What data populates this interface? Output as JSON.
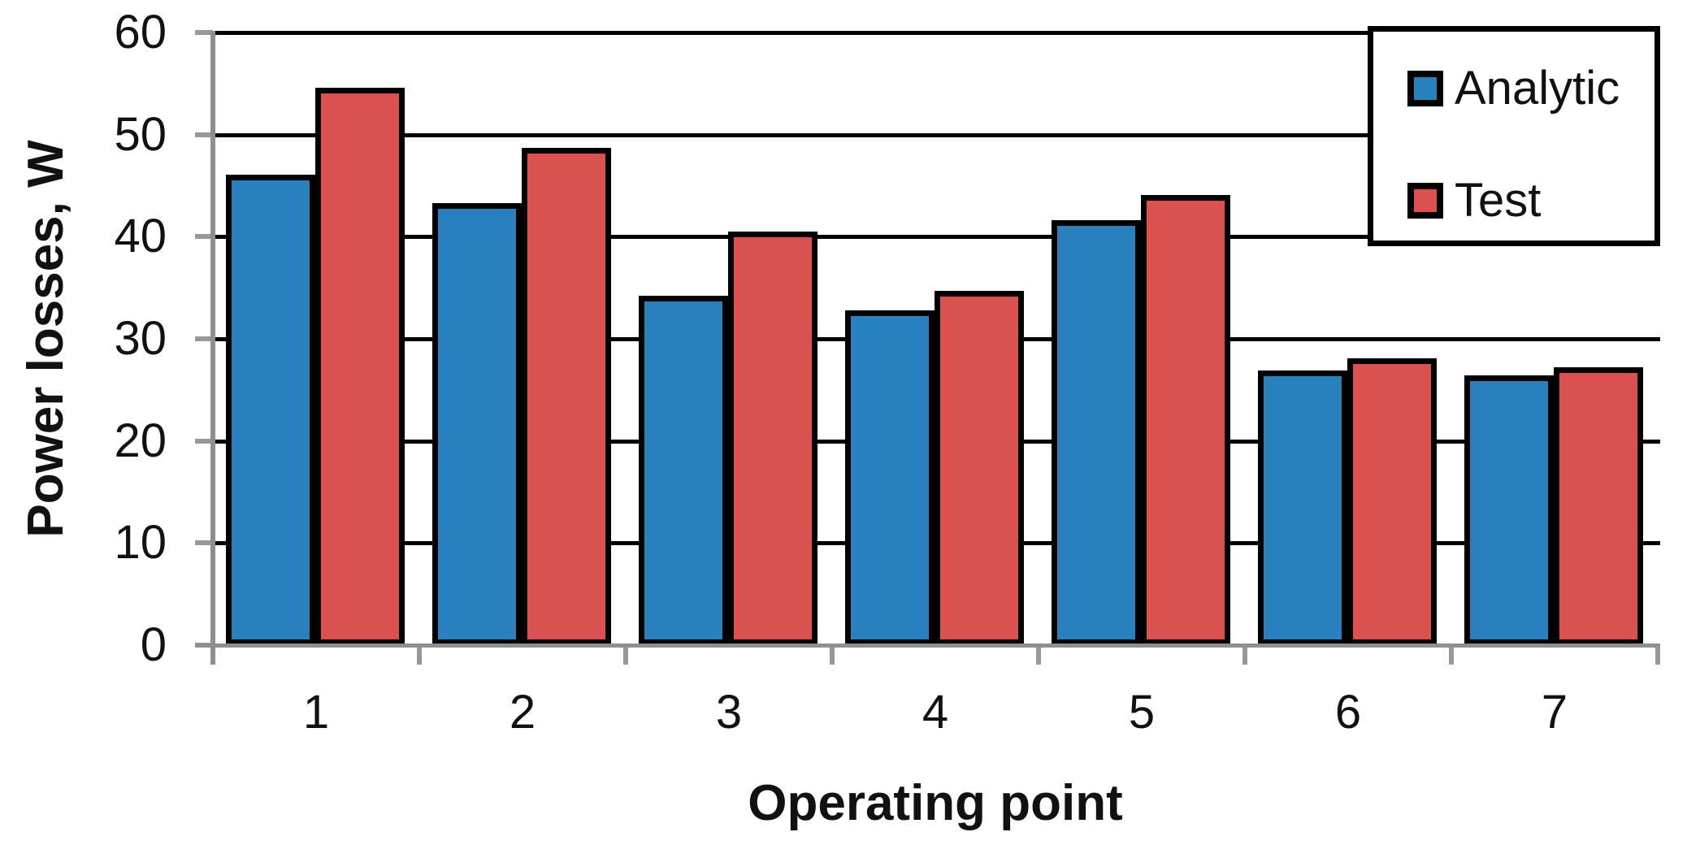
{
  "chart_data": {
    "type": "bar",
    "title": "",
    "categories": [
      "1",
      "2",
      "3",
      "4",
      "5",
      "6",
      "7"
    ],
    "series": [
      {
        "name": "Analytic",
        "color": "#2980BD",
        "values": [
          46.1,
          43.3,
          34.2,
          32.8,
          41.6,
          26.9,
          26.4
        ]
      },
      {
        "name": "Test",
        "color": "#DA5150",
        "values": [
          54.6,
          48.7,
          40.5,
          34.7,
          44.1,
          28.1,
          27.2
        ]
      }
    ],
    "xlabel": "Operating point",
    "ylabel": "Power losses, W",
    "ylim": [
      0,
      60
    ],
    "ytick_step": 10,
    "yticks": [
      "0",
      "10",
      "20",
      "30",
      "40",
      "50",
      "60"
    ],
    "grid": "horizontal",
    "gridline_color": "#000000",
    "axis_color": "#8F8F8F",
    "bar_border_color": "#000000",
    "legend_position": "top-right",
    "legend_border_color": "#000000"
  }
}
